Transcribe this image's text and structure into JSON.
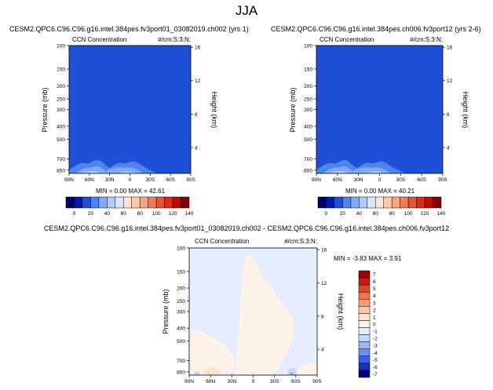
{
  "page": {
    "season": "JJA"
  },
  "colors": {
    "abs_scale": [
      "#000066",
      "#0018a8",
      "#1f4fd6",
      "#4f83ee",
      "#7eaaf7",
      "#aecbfc",
      "#d6e6fd",
      "#fde6d6",
      "#fcc9ad",
      "#f7a582",
      "#ef7d59",
      "#e45435",
      "#d62c16",
      "#b80c06",
      "#800000"
    ],
    "diff_scale": [
      "#000080",
      "#1a2fbf",
      "#3a5fe6",
      "#6b8cf2",
      "#9ab5f7",
      "#c7d8fb",
      "#e6eefd",
      "#fdf3e8",
      "#fde3cc",
      "#fcc7a6",
      "#f89f78",
      "#ef744f",
      "#e0462a",
      "#c51d10",
      "#9a0000"
    ]
  },
  "chart_data": [
    {
      "type": "heatmap",
      "title": "CESM2.QPC6.C96.C96.g16.intel.384pes.fv3port01_03082019.ch002 (yrs 1)",
      "left_label": "CCN Concentration",
      "right_label": "#/cm:S:3:N:",
      "ylabel": "Pressure (mb)",
      "y2label": "Height (km)",
      "x_ticks": [
        "90N",
        "60N",
        "30N",
        "0",
        "30S",
        "60S",
        "90S"
      ],
      "y_ticks": [
        "100",
        "150",
        "200",
        "250",
        "300",
        "400",
        "500",
        "700",
        "850"
      ],
      "y2_ticks": [
        "16",
        "12",
        "8",
        "4"
      ],
      "stats": "MIN =   0.00  MAX =  42.61",
      "colorbar": {
        "levels": [
          "0",
          "20",
          "40",
          "60",
          "80",
          "100",
          "120",
          "140"
        ]
      }
    },
    {
      "type": "heatmap",
      "title": "CESM2.QPC6.C96.C96.g16.intel.384pes.ch006.fv3port12 (yrs 2-6)",
      "left_label": "CCN Concentration",
      "right_label": "#/cm:S:3:N:",
      "ylabel": "Pressure (mb)",
      "y2label": "Height (km)",
      "x_ticks": [
        "90N",
        "60N",
        "30N",
        "0",
        "30S",
        "60S",
        "90S"
      ],
      "y_ticks": [
        "100",
        "150",
        "200",
        "250",
        "300",
        "400",
        "500",
        "700",
        "850"
      ],
      "y2_ticks": [
        "16",
        "12",
        "8",
        "4"
      ],
      "stats": "MIN =   0.00  MAX =  40.21",
      "colorbar": {
        "levels": [
          "0",
          "20",
          "40",
          "60",
          "80",
          "100",
          "120",
          "140"
        ]
      }
    },
    {
      "type": "heatmap",
      "title": "CESM2.QPC6.C96.C96.g16.intel.384pes.fv3port01_03082019.ch002 - CESM2.QPC6.C96.C96.g16.intel.384pes.ch006.fv3port12",
      "left_label": "CCN Concentration",
      "right_label": "#/cm:S:3:N:",
      "ylabel": "Pressure (mb)",
      "y2label": "Height (km)",
      "x_ticks": [
        "90N",
        "60N",
        "30N",
        "0",
        "30S",
        "60S",
        "90S"
      ],
      "y_ticks": [
        "100",
        "150",
        "200",
        "250",
        "300",
        "400",
        "500",
        "700",
        "850"
      ],
      "y2_ticks": [
        "16",
        "12",
        "8",
        "4"
      ],
      "stats": "MIN =  -3.83  MAX =   3.91",
      "colorbar": {
        "levels": [
          "7",
          "6",
          "5",
          "4",
          "3",
          "2",
          "1",
          "0",
          "-1",
          "-2",
          "-3",
          "-4",
          "-5",
          "-6",
          "-7"
        ]
      }
    }
  ]
}
